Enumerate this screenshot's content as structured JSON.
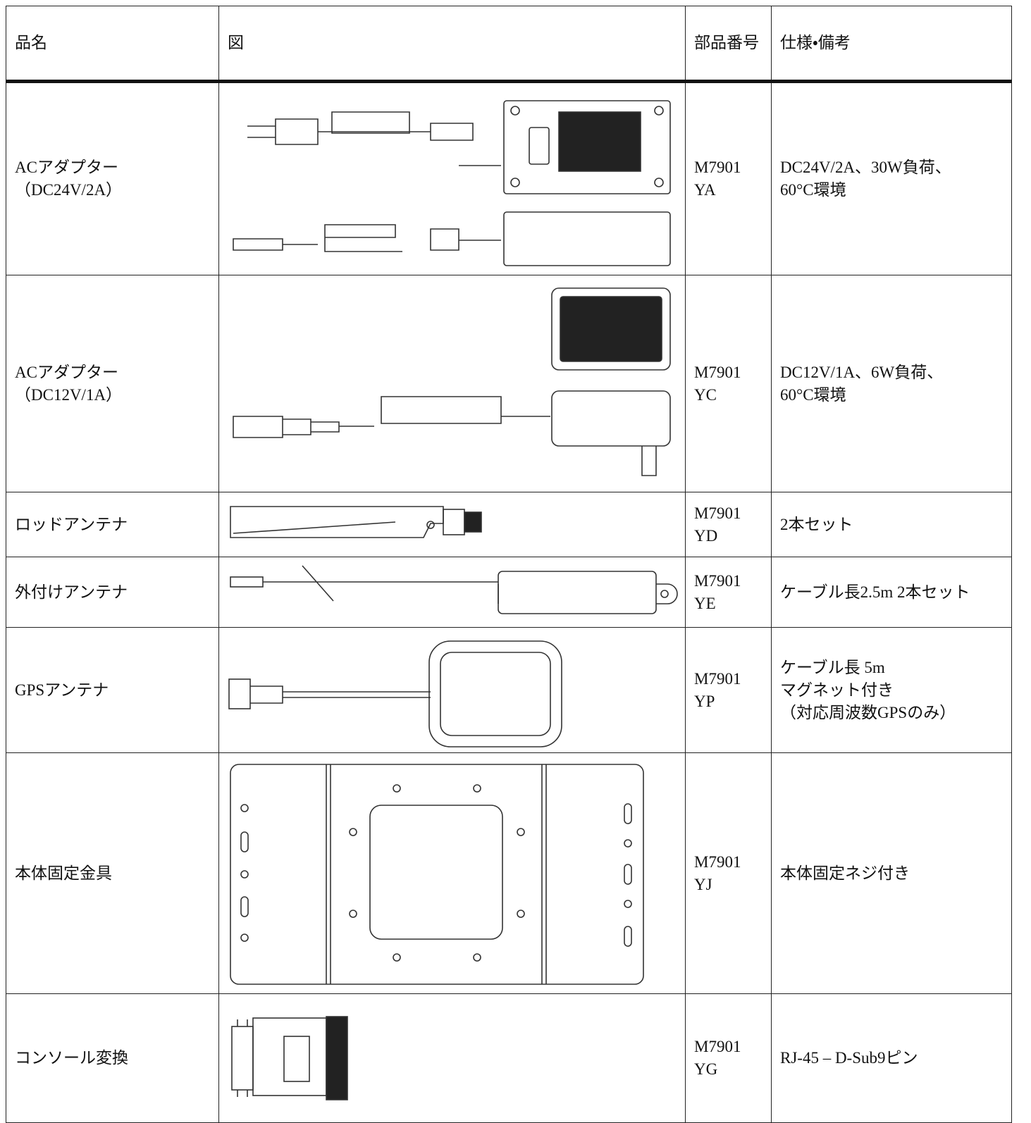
{
  "table": {
    "header": [
      "品名",
      "図",
      "部品番号",
      "仕様・備考"
    ],
    "rows": [
      {
        "name": [
          "ACアダプター",
          "（DC24V/2A）"
        ],
        "part": [
          "M7901",
          "YA"
        ],
        "spec": [
          "DC24V/2A、30W負荷、",
          "60°C環境"
        ]
      },
      {
        "name": [
          "ACアダプター",
          "（DC12V/1A）"
        ],
        "part": [
          "M7901",
          "YC"
        ],
        "spec": [
          "DC12V/1A、6W負荷、",
          "60°C環境"
        ]
      },
      {
        "name": [
          "ロッドアンテナ"
        ],
        "part": [
          "M7901",
          "YD"
        ],
        "spec": [
          "2本セット"
        ]
      },
      {
        "name": [
          "外付けアンテナ"
        ],
        "part": [
          "M7901",
          "YE"
        ],
        "spec": [
          "ケーブル長2.5m 2本セット"
        ]
      },
      {
        "name": [
          "GPSアンテナ"
        ],
        "part": [
          "M7901",
          "YP"
        ],
        "spec": [
          "ケーブル長 5m",
          "マグネット付き",
          "（対応周波数GPSのみ）"
        ]
      },
      {
        "name": [
          "本体固定金具"
        ],
        "part": [
          "M7901",
          "YJ"
        ],
        "spec": [
          "本体固定ネジ付き"
        ]
      },
      {
        "name": [
          "コンソール変換"
        ],
        "part": [
          "M7901",
          "YG"
        ],
        "spec": [
          "RJ-45 – D-Sub9ピン"
        ]
      }
    ]
  }
}
